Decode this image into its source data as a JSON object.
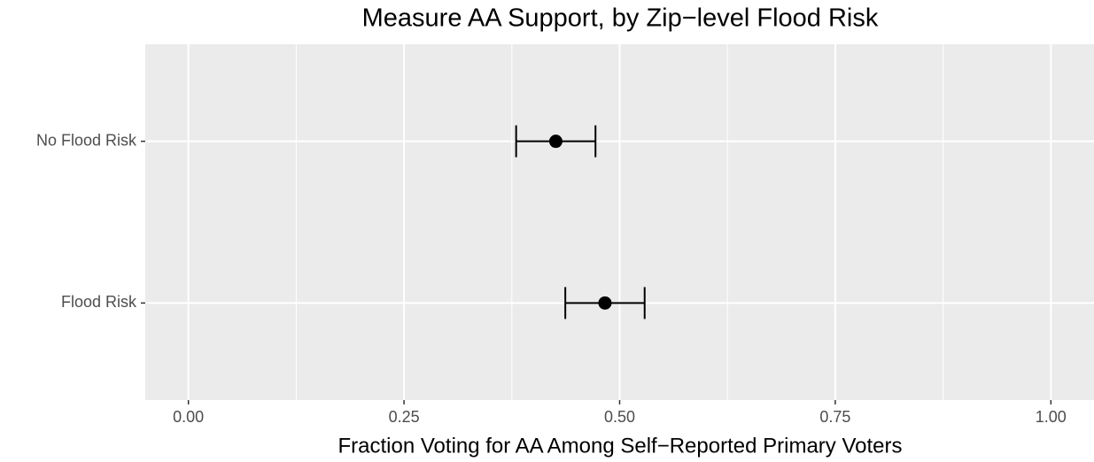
{
  "chart_data": {
    "type": "errorbar",
    "title": "Measure AA Support, by Zip−level Flood Risk",
    "x_label": "Fraction Voting for AA Among Self−Reported Primary Voters",
    "categories": [
      "No Flood Risk",
      "Flood Risk"
    ],
    "values": [
      0.426,
      0.483
    ],
    "errors": [
      0.046,
      0.046
    ],
    "color": "#000000",
    "xlim": [
      -0.05,
      1.05
    ],
    "xticks": [
      {
        "value": 0,
        "label": "0.00"
      },
      {
        "value": 0.25,
        "label": "0.25"
      },
      {
        "value": 0.5,
        "label": "0.50"
      },
      {
        "value": 0.75,
        "label": "0.75"
      },
      {
        "value": 1,
        "label": "1.00"
      }
    ],
    "grid": true
  }
}
